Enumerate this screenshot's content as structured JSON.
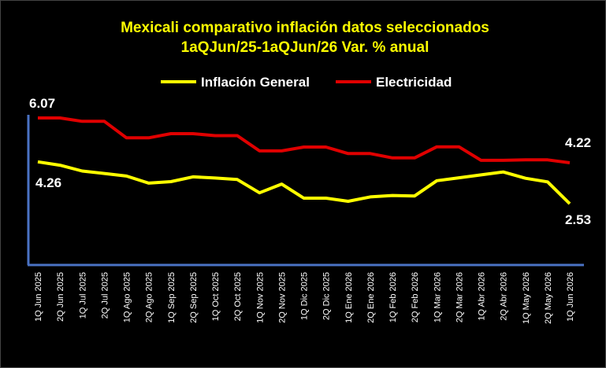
{
  "chart_data": {
    "type": "line",
    "title_line1": "Mexicali comparativo inflación datos seleccionados",
    "title_line2": "1aQJun/25-1aQJun/26 Var. % anual",
    "legend_position": "top",
    "ylim": [
      0,
      6.2
    ],
    "categories": [
      "1Q Jun 2025",
      "2Q Jun 2025",
      "1Q Jul 2025",
      "2Q Jul 2025",
      "1Q Ago 2025",
      "2Q Ago 2025",
      "1Q Sep 2025",
      "2Q Sep 2025",
      "1Q Oct 2025",
      "2Q Oct 2025",
      "1Q Nov 2025",
      "2Q Nov 2025",
      "1Q Dic 2025",
      "2Q Dic 2025",
      "1Q Ene 2026",
      "2Q Ene 2026",
      "1Q Feb 2026",
      "2Q Feb 2026",
      "1Q Mar 2026",
      "2Q Mar 2026",
      "1Q Abr 2026",
      "2Q Abr 2026",
      "1Q May 2026",
      "2Q May 2026",
      "1Q Jun 2026"
    ],
    "series": [
      {
        "name": "Inflación General",
        "color": "#ffff00",
        "values": [
          4.26,
          4.12,
          3.88,
          3.78,
          3.67,
          3.38,
          3.44,
          3.64,
          3.59,
          3.53,
          2.98,
          3.34,
          2.76,
          2.76,
          2.63,
          2.81,
          2.87,
          2.85,
          3.48,
          3.6,
          3.72,
          3.84,
          3.58,
          3.43,
          2.53
        ]
      },
      {
        "name": "Electricidad",
        "color": "#e00000",
        "values": [
          6.07,
          6.07,
          5.93,
          5.93,
          5.25,
          5.25,
          5.42,
          5.42,
          5.34,
          5.34,
          4.71,
          4.71,
          4.87,
          4.87,
          4.6,
          4.6,
          4.42,
          4.42,
          4.88,
          4.88,
          4.32,
          4.32,
          4.34,
          4.34,
          4.22
        ]
      }
    ],
    "data_labels": {
      "general_first": "4.26",
      "general_last": "2.53",
      "electricidad_first": "6.07",
      "electricidad_last": "4.22"
    },
    "axis_color": "#4a72c4",
    "grid": false
  }
}
